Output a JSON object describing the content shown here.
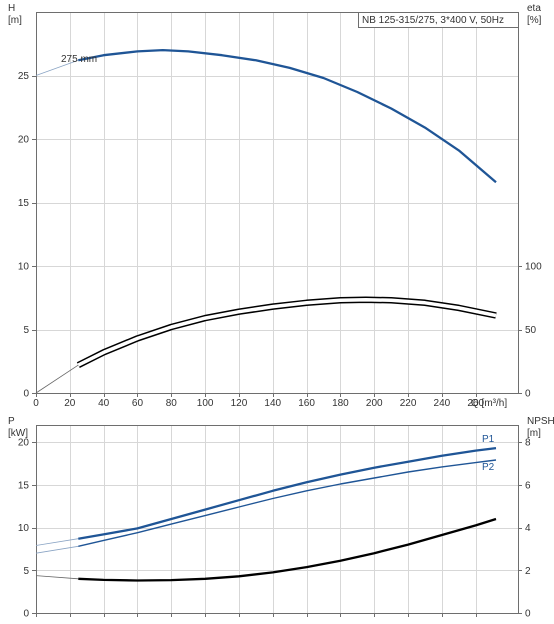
{
  "chart_data": [
    {
      "type": "line",
      "title": "NB 125-315/275, 3*400 V, 50Hz",
      "xlabel": "Q [m³/h]",
      "ylabel": "H\n[m]",
      "ylabel_right": "eta\n[%]",
      "xlim": [
        0,
        285
      ],
      "xticks": [
        0,
        20,
        40,
        60,
        80,
        100,
        120,
        140,
        160,
        180,
        200,
        220,
        240,
        260
      ],
      "ylim": [
        0,
        30
      ],
      "yticks": [
        0,
        5,
        10,
        15,
        20,
        25
      ],
      "ylim_right": [
        0,
        300
      ],
      "yticks_right": [
        0,
        50,
        100
      ],
      "grid": true,
      "annotations": [
        "275 mm"
      ],
      "series": [
        {
          "role": "head",
          "axis": "left",
          "color": "#1f5596",
          "x": [
            25,
            40,
            60,
            75,
            90,
            110,
            130,
            150,
            170,
            190,
            210,
            230,
            250,
            272
          ],
          "y": [
            26.2,
            26.6,
            26.9,
            27.0,
            26.9,
            26.6,
            26.2,
            25.6,
            24.8,
            23.7,
            22.4,
            20.9,
            19.1,
            16.6
          ],
          "ext_x": [
            0,
            25
          ],
          "ext_y": [
            25.0,
            26.2
          ]
        },
        {
          "role": "efficiency",
          "axis": "right",
          "color": "#000000",
          "x": [
            25,
            40,
            60,
            80,
            100,
            120,
            140,
            160,
            180,
            195,
            210,
            230,
            250,
            272
          ],
          "y": [
            22,
            32,
            43,
            52,
            59,
            64,
            68,
            71,
            73,
            73.5,
            73,
            71,
            67,
            61
          ],
          "ext_x": [
            0,
            25
          ],
          "ext_y": [
            0,
            22
          ]
        }
      ]
    },
    {
      "type": "line",
      "xlabel": "",
      "ylabel": "P\n[kW]",
      "ylabel_right": "NPSH\n[m]",
      "xlim": [
        0,
        285
      ],
      "xticks": [
        0,
        20,
        40,
        60,
        80,
        100,
        120,
        140,
        160,
        180,
        200,
        220,
        240,
        260
      ],
      "ylim": [
        0,
        22
      ],
      "yticks": [
        0,
        5,
        10,
        15,
        20
      ],
      "ylim_right": [
        0,
        8.8
      ],
      "yticks_right": [
        0,
        2,
        4,
        6,
        8
      ],
      "grid": true,
      "series": [
        {
          "name": "P1",
          "axis": "left",
          "color": "#1f5596",
          "x": [
            25,
            40,
            60,
            80,
            100,
            120,
            140,
            160,
            180,
            200,
            220,
            240,
            260,
            272
          ],
          "y": [
            8.7,
            9.2,
            9.9,
            11.0,
            12.1,
            13.2,
            14.3,
            15.3,
            16.2,
            17.0,
            17.7,
            18.4,
            19.0,
            19.3
          ],
          "ext_x": [
            0,
            25
          ],
          "ext_y": [
            7.9,
            8.7
          ]
        },
        {
          "name": "P2",
          "axis": "left",
          "color": "#1f5596",
          "x": [
            25,
            40,
            60,
            80,
            100,
            120,
            140,
            160,
            180,
            200,
            220,
            240,
            260,
            272
          ],
          "y": [
            7.8,
            8.5,
            9.4,
            10.4,
            11.4,
            12.4,
            13.4,
            14.3,
            15.1,
            15.8,
            16.5,
            17.1,
            17.6,
            17.9
          ],
          "ext_x": [
            0,
            25
          ],
          "ext_y": [
            7.0,
            7.8
          ]
        },
        {
          "role": "npsh",
          "axis": "right",
          "color": "#000000",
          "x": [
            25,
            40,
            60,
            80,
            100,
            120,
            140,
            160,
            180,
            200,
            220,
            240,
            260,
            272
          ],
          "y": [
            1.6,
            1.55,
            1.52,
            1.54,
            1.6,
            1.72,
            1.9,
            2.15,
            2.45,
            2.8,
            3.2,
            3.65,
            4.1,
            4.4
          ],
          "ext_x": [
            0,
            25
          ],
          "ext_y": [
            1.75,
            1.6
          ]
        }
      ]
    }
  ]
}
